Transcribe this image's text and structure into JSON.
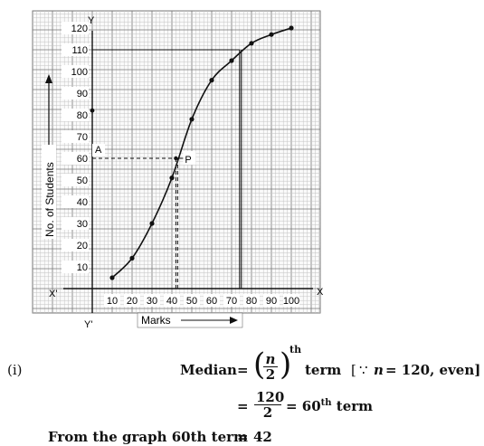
{
  "chart_data": {
    "type": "line",
    "x": [
      10,
      20,
      30,
      40,
      50,
      60,
      70,
      80,
      90,
      100
    ],
    "y": [
      5,
      14,
      30,
      51,
      78,
      96,
      105,
      113,
      117,
      120
    ],
    "xlim": [
      0,
      100
    ],
    "ylim": [
      0,
      120
    ],
    "xticks": [
      "10",
      "20",
      "30",
      "40",
      "50",
      "60",
      "70",
      "80",
      "90",
      "100"
    ],
    "yticks": [
      "10",
      "20",
      "30",
      "40",
      "50",
      "60",
      "70",
      "80",
      "90",
      "100",
      "110",
      "120"
    ],
    "xlabel": "Marks",
    "ylabel": "No. of Students",
    "axis_names": {
      "x": "X",
      "x_neg": "X'",
      "y": "Y",
      "y_neg": "Y'"
    },
    "median_point": {
      "label": "P",
      "x": 42,
      "y": 60
    },
    "level_label": {
      "text": "A",
      "y": 60
    },
    "guide_lines": [
      {
        "x": 42,
        "y": 60
      },
      {
        "x": 74,
        "y": 110
      }
    ],
    "stray_point": {
      "x": 0,
      "y": 82
    },
    "grid": true
  },
  "solution": {
    "part": "(i)",
    "line1_lhs": "Median",
    "eq": "=",
    "n_num": "n",
    "n_den": "2",
    "th": "th",
    "term": "term",
    "note_open": "[",
    "note_because": "∵",
    "note_var": "n",
    "note_rest": "= 120, even]",
    "line2_num": "120",
    "line2_den": "2",
    "line2_eq": "= 60",
    "line2_term": "term",
    "line3_lhs": "From the graph 60th term",
    "line3_val": "42"
  }
}
